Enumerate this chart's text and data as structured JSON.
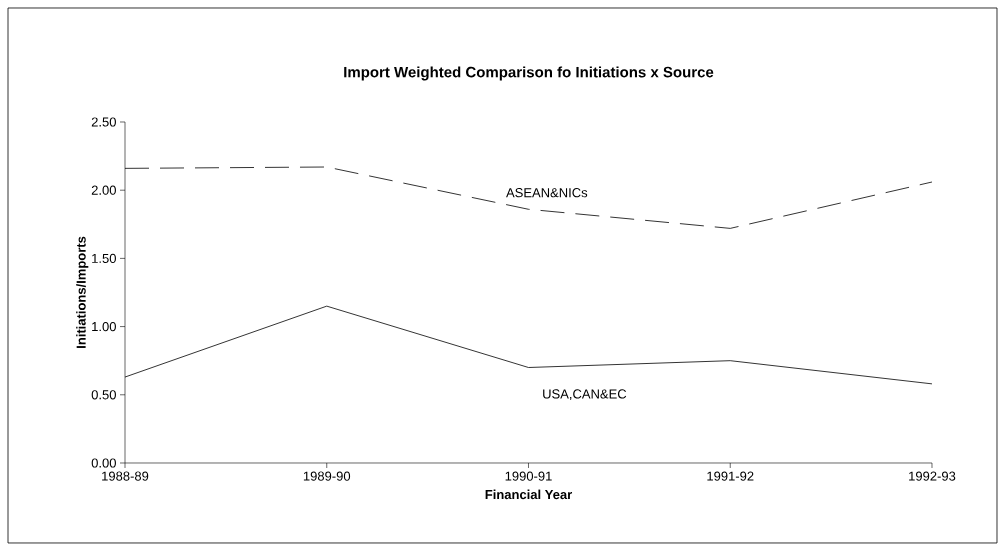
{
  "chart_data": {
    "type": "line",
    "title": "Import Weighted Comparison fo Initiations x Source",
    "xlabel": "Financial Year",
    "ylabel": "Initiations/Imports",
    "categories": [
      "1988-89",
      "1989-90",
      "1990-91",
      "1991-92",
      "1992-93"
    ],
    "series": [
      {
        "name": "ASEAN&NICs",
        "color": "#000000",
        "line_style": "dashed",
        "values": [
          2.16,
          2.17,
          1.86,
          1.72,
          2.06
        ]
      },
      {
        "name": "USA,CAN&EC",
        "color": "#000000",
        "line_style": "solid",
        "values": [
          0.63,
          1.15,
          0.7,
          0.75,
          0.58
        ]
      }
    ],
    "ylim": [
      0,
      2.5
    ],
    "yticks": [
      {
        "value": 0,
        "label": "0.00"
      },
      {
        "value": 0.5,
        "label": "0.50"
      },
      {
        "value": 1,
        "label": "1.00"
      },
      {
        "value": 1.5,
        "label": "1.50"
      },
      {
        "value": 2,
        "label": "2.00"
      },
      {
        "value": 2.5,
        "label": "2.50"
      }
    ],
    "grid": false,
    "marker": "none"
  }
}
